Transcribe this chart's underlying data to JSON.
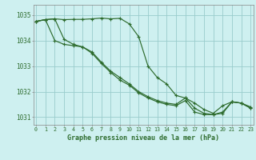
{
  "title": "Graphe pression niveau de la mer (hPa)",
  "bg_color": "#cef0f0",
  "grid_color": "#99cccc",
  "line_color": "#2d6b2d",
  "ylim": [
    1030.7,
    1035.4
  ],
  "xlim": [
    -0.3,
    23.3
  ],
  "yticks": [
    1031,
    1032,
    1033,
    1034,
    1035
  ],
  "xticks": [
    0,
    1,
    2,
    3,
    4,
    5,
    6,
    7,
    8,
    9,
    10,
    11,
    12,
    13,
    14,
    15,
    16,
    17,
    18,
    19,
    20,
    21,
    22,
    23
  ],
  "xtick_labels": [
    "0",
    "1",
    "2",
    "3",
    "4",
    "5",
    "6",
    "7",
    "8",
    "9",
    "10",
    "11",
    "12",
    "13",
    "14",
    "15",
    "16",
    "17",
    "18",
    "19",
    "20",
    "21",
    "22",
    "23"
  ],
  "series": [
    [
      1034.75,
      1034.82,
      1034.85,
      1034.82,
      1034.83,
      1034.83,
      1034.85,
      1034.88,
      1034.85,
      1034.87,
      1034.65,
      1034.15,
      1033.0,
      1032.55,
      1032.3,
      1031.85,
      1031.75,
      1031.55,
      1031.3,
      1031.15,
      1031.45,
      1031.6,
      1031.55,
      1031.4
    ],
    [
      1034.75,
      1034.82,
      1034.0,
      1033.85,
      1033.8,
      1033.75,
      1033.5,
      1033.1,
      1032.75,
      1032.45,
      1032.25,
      1031.95,
      1031.75,
      1031.6,
      1031.5,
      1031.45,
      1031.65,
      1031.2,
      1031.1,
      1031.1,
      1031.15,
      1031.6,
      1031.55,
      1031.35
    ],
    [
      1034.75,
      1034.82,
      1034.85,
      1034.05,
      1033.85,
      1033.75,
      1033.55,
      1033.15,
      1032.8,
      1032.55,
      1032.3,
      1032.0,
      1031.8,
      1031.65,
      1031.55,
      1031.5,
      1031.75,
      1031.35,
      1031.15,
      1031.1,
      1031.2,
      1031.6,
      1031.55,
      1031.35
    ]
  ]
}
